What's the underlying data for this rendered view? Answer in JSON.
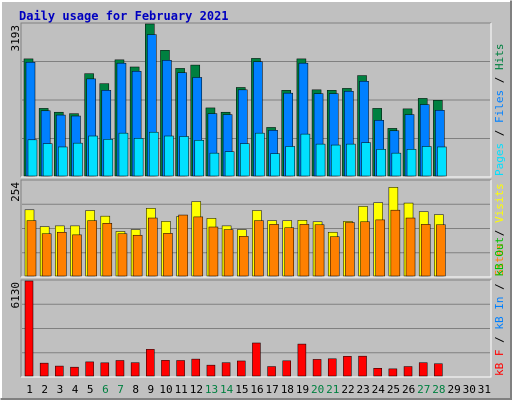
{
  "chart_data": [
    {
      "type": "bar",
      "title": "Daily usage for February 2021",
      "categories": [
        "1",
        "2",
        "3",
        "4",
        "5",
        "6",
        "7",
        "8",
        "9",
        "10",
        "11",
        "12",
        "13",
        "14",
        "15",
        "16",
        "17",
        "18",
        "19",
        "20",
        "21",
        "22",
        "23",
        "24",
        "25",
        "26",
        "27",
        "28",
        "29",
        "30",
        "31"
      ],
      "weekend_days": [
        "6",
        "7",
        "13",
        "14",
        "20",
        "21",
        "27",
        "28"
      ],
      "ymax_label": "3193",
      "ylim": [
        0,
        3193
      ],
      "series": [
        {
          "name": "Hits",
          "color": "#008040",
          "values": [
            2460,
            1420,
            1340,
            1310,
            2150,
            1940,
            2440,
            2290,
            3193,
            2640,
            2260,
            2330,
            1430,
            1340,
            1860,
            2470,
            1020,
            1800,
            2460,
            1810,
            1800,
            1840,
            2110,
            1420,
            1000,
            1410,
            1630,
            1590,
            0,
            0,
            0
          ]
        },
        {
          "name": "Files",
          "color": "#0080ff",
          "values": [
            2390,
            1370,
            1280,
            1260,
            2040,
            1800,
            2370,
            2200,
            2970,
            2430,
            2170,
            2070,
            1310,
            1290,
            1810,
            2400,
            960,
            1740,
            2370,
            1730,
            1730,
            1780,
            1990,
            1170,
            950,
            1290,
            1500,
            1380,
            0,
            0,
            0
          ]
        },
        {
          "name": "Pages",
          "color": "#00e0ff",
          "values": [
            760,
            680,
            610,
            690,
            840,
            770,
            900,
            790,
            920,
            840,
            830,
            750,
            480,
            510,
            680,
            900,
            470,
            620,
            880,
            670,
            650,
            670,
            700,
            560,
            480,
            560,
            620,
            610,
            0,
            0,
            0
          ]
        }
      ]
    },
    {
      "type": "bar",
      "ymax_label": "254",
      "ylim": [
        0,
        254
      ],
      "series": [
        {
          "name": "Visits",
          "color": "#ffff00",
          "values": [
            177,
            132,
            134,
            134,
            175,
            160,
            119,
            124,
            181,
            146,
            159,
            199,
            154,
            134,
            124,
            175,
            148,
            148,
            149,
            145,
            117,
            146,
            186,
            196,
            237,
            195,
            172,
            164,
            0,
            0,
            0
          ]
        },
        {
          "name": "Sites",
          "color": "#ff8000",
          "values": [
            148,
            113,
            117,
            110,
            148,
            141,
            113,
            109,
            155,
            114,
            163,
            158,
            131,
            124,
            106,
            148,
            138,
            129,
            138,
            137,
            105,
            143,
            145,
            150,
            176,
            155,
            138,
            137,
            0,
            0,
            0
          ]
        }
      ]
    },
    {
      "type": "bar",
      "ymax_label": "6130",
      "ylim": [
        0,
        6130
      ],
      "series": [
        {
          "name": "KBytes",
          "color": "#ff0000",
          "values": [
            6130,
            830,
            640,
            570,
            910,
            850,
            1000,
            860,
            1720,
            1010,
            1000,
            1090,
            700,
            860,
            970,
            2130,
            610,
            980,
            2060,
            1070,
            1110,
            1270,
            1280,
            500,
            460,
            610,
            860,
            790,
            0,
            0,
            0
          ]
        }
      ]
    }
  ],
  "legends": [
    {
      "label": "Hits",
      "color": "#008040"
    },
    {
      "label": "Files",
      "color": "#0080ff"
    },
    {
      "label": "Pages",
      "color": "#00e0ff"
    },
    {
      "label": "Visits",
      "color": "#ffff00"
    },
    {
      "label": "Sites",
      "color": "#ff8000"
    },
    {
      "label": "KBytes",
      "text": "kB F",
      "color": "#ff0000"
    },
    {
      "label": "KBytes In",
      "text": "kB In",
      "color": "#0080ff"
    },
    {
      "label": "KBytes Out",
      "text": "kB Out",
      "color": "#00c000"
    }
  ],
  "colors": {
    "page_bg": "#ffffff",
    "outer_bg": "#c0c0c0",
    "plot_bg": "#c0c0c0",
    "title": "#0000c0",
    "weekday_label": "#000000",
    "weekend_label": "#008040",
    "grid": "#808080"
  }
}
